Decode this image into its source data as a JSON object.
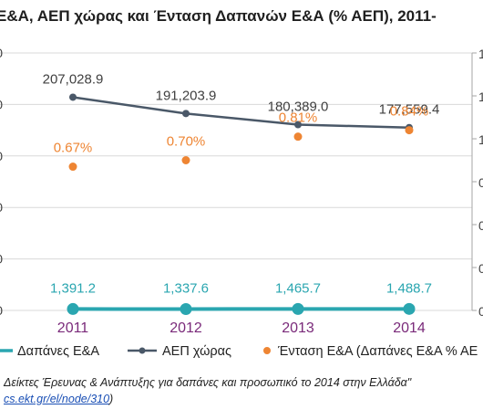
{
  "title": "Ε&Α, ΑΕΠ χώρας και Ένταση Δαπανών Ε&Α (% ΑΕΠ), 2011-",
  "chart_data": {
    "type": "line",
    "title": "Ε&Α, ΑΕΠ χώρας και Ένταση Δαπανών Ε&Α (% ΑΕΠ), 2011-",
    "categories": [
      "2011",
      "2012",
      "2013",
      "2014"
    ],
    "left_axis": {
      "ticks": [
        "0",
        "0",
        "0",
        "0",
        "0",
        "0"
      ],
      "range": [
        0,
        250000
      ]
    },
    "right_axis": {
      "ticks": [
        "1",
        "1",
        "1",
        "0",
        "0",
        "0",
        "0"
      ],
      "range": [
        0,
        1.2
      ]
    },
    "series": [
      {
        "name": "Δαπάνες Ε&Α",
        "type": "line",
        "axis": "left",
        "color": "#2aa6b0",
        "values": [
          1391.2,
          1337.6,
          1465.7,
          1488.7
        ],
        "labels": [
          "1,391.2",
          "1,337.6",
          "1,465.7",
          "1,488.7"
        ]
      },
      {
        "name": "ΑΕΠ χώρας",
        "type": "line",
        "axis": "left",
        "color": "#4a5868",
        "values": [
          207028.9,
          191203.9,
          180389.0,
          177559.4
        ],
        "labels": [
          "207,028.9",
          "191,203.9",
          "180,389.0",
          "177,559.4"
        ]
      },
      {
        "name": "Ένταση Ε&Α (Δαπάνες Ε&Α % ΑΕ",
        "type": "scatter",
        "axis": "right",
        "color": "#ee8533",
        "values": [
          0.67,
          0.7,
          0.81,
          0.84
        ],
        "labels": [
          "0.67%",
          "0.70%",
          "0.81%",
          "0.84%"
        ]
      }
    ],
    "legend_position": "bottom",
    "grid": true
  },
  "source": {
    "line1": "Δείκτες Έρευνας & Ανάπτυξης για δαπάνες και προσωπικό το 2014 στην Ελλάδα\"",
    "link": "cs.ekt.gr/el/node/310",
    "line2_suffix": ")"
  }
}
